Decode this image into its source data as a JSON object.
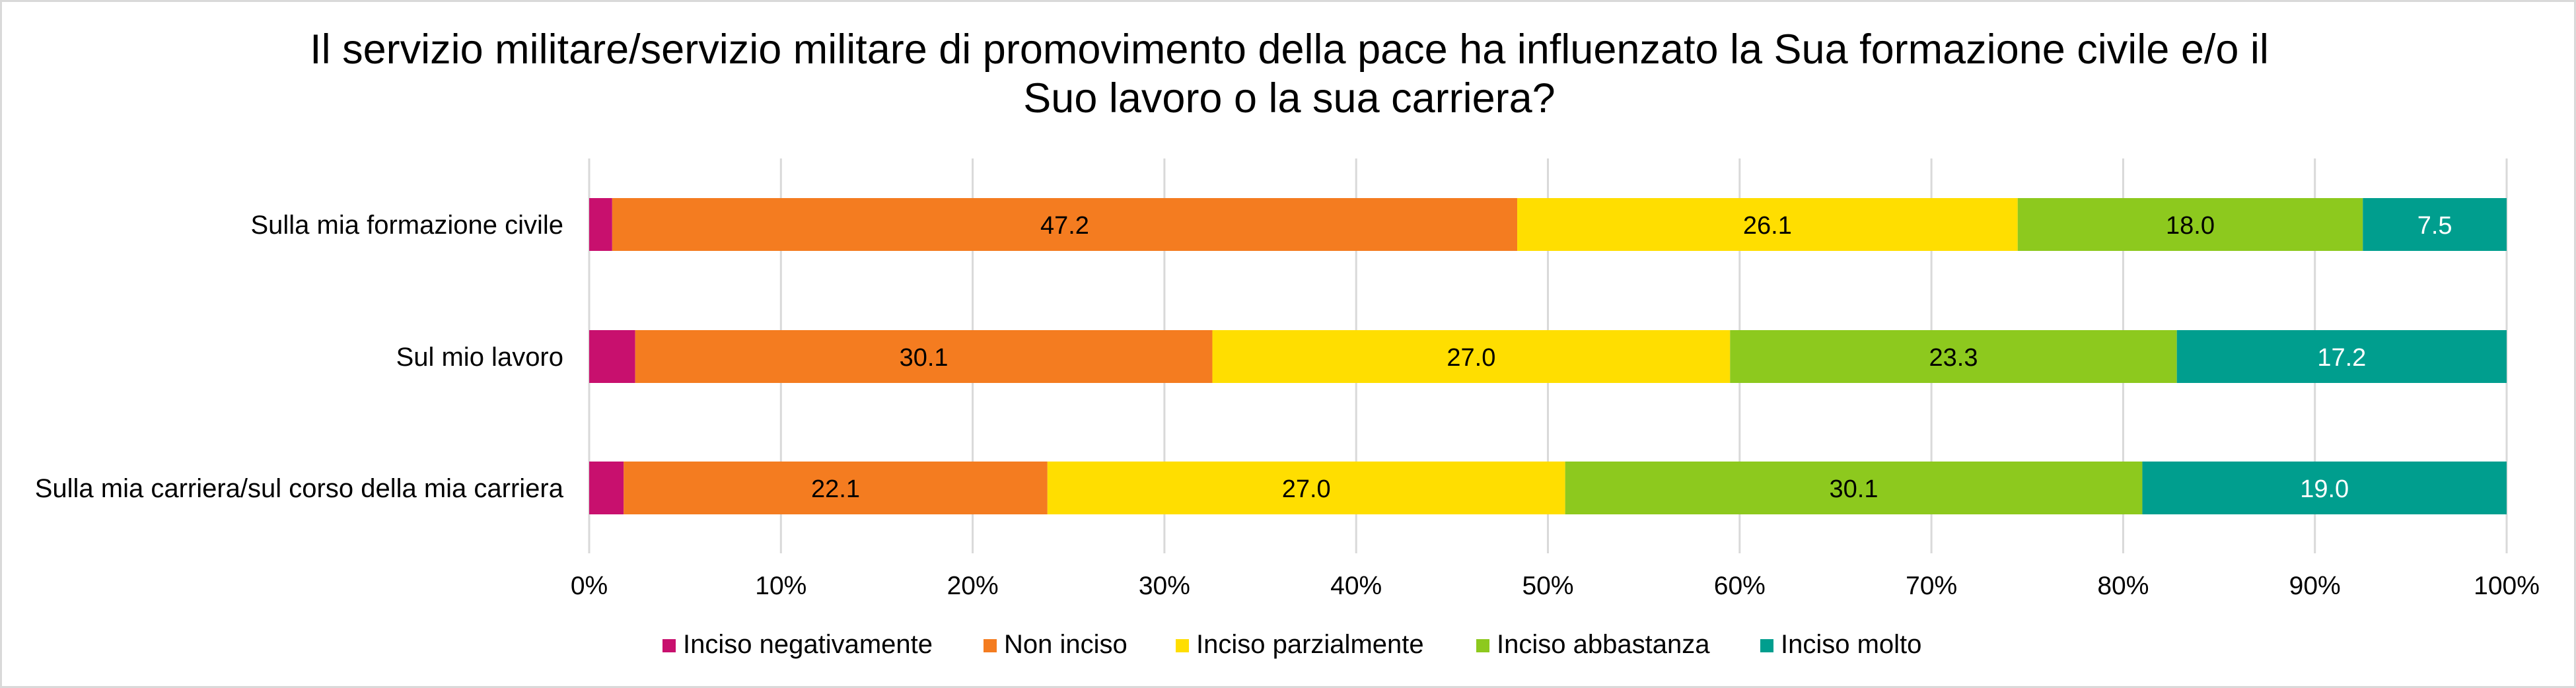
{
  "chart_data": {
    "type": "bar",
    "orientation": "horizontal",
    "stacked": "percent",
    "title_lines": [
      "Il servizio militare/servizio militare di promovimento della pace ha influenzato la Sua formazione civile e/o il",
      "Suo lavoro o la sua carriera?"
    ],
    "categories": [
      "Sulla mia formazione civile",
      "Sul mio lavoro",
      "Sulla mia carriera/sul corso della mia carriera"
    ],
    "series": [
      {
        "name": "Inciso negativamente",
        "color": "#C8106E",
        "label_color": "#000000",
        "values": [
          1.2,
          2.4,
          1.8
        ],
        "show_labels": false
      },
      {
        "name": "Non inciso",
        "color": "#F47C20",
        "label_color": "#000000",
        "values": [
          47.2,
          30.1,
          22.1
        ],
        "show_labels": true
      },
      {
        "name": "Inciso parzialmente",
        "color": "#FFDE00",
        "label_color": "#000000",
        "values": [
          26.1,
          27.0,
          27.0
        ],
        "show_labels": true
      },
      {
        "name": "Inciso abbastanza",
        "color": "#8DC91E",
        "label_color": "#000000",
        "values": [
          18.0,
          23.3,
          30.1
        ],
        "show_labels": true
      },
      {
        "name": "Inciso molto",
        "color": "#009E8E",
        "label_color": "#FFFFFF",
        "values": [
          7.5,
          17.2,
          19.0
        ],
        "show_labels": true
      }
    ],
    "data_labels": [
      [
        "",
        "47.2",
        "26.1",
        "18.0",
        "7.5"
      ],
      [
        "",
        "30.1",
        "27.0",
        "23.3",
        "17.2"
      ],
      [
        "",
        "22.1",
        "27.0",
        "30.1",
        "19.0"
      ]
    ],
    "xlim": [
      0,
      100
    ],
    "xticks": [
      0,
      10,
      20,
      30,
      40,
      50,
      60,
      70,
      80,
      90,
      100
    ],
    "xtick_labels": [
      "0%",
      "10%",
      "20%",
      "30%",
      "40%",
      "50%",
      "60%",
      "70%",
      "80%",
      "90%",
      "100%"
    ],
    "xlabel": "",
    "ylabel": "",
    "grid": "vertical",
    "gridline_color": "#D9D9D9",
    "legend_position": "bottom"
  }
}
